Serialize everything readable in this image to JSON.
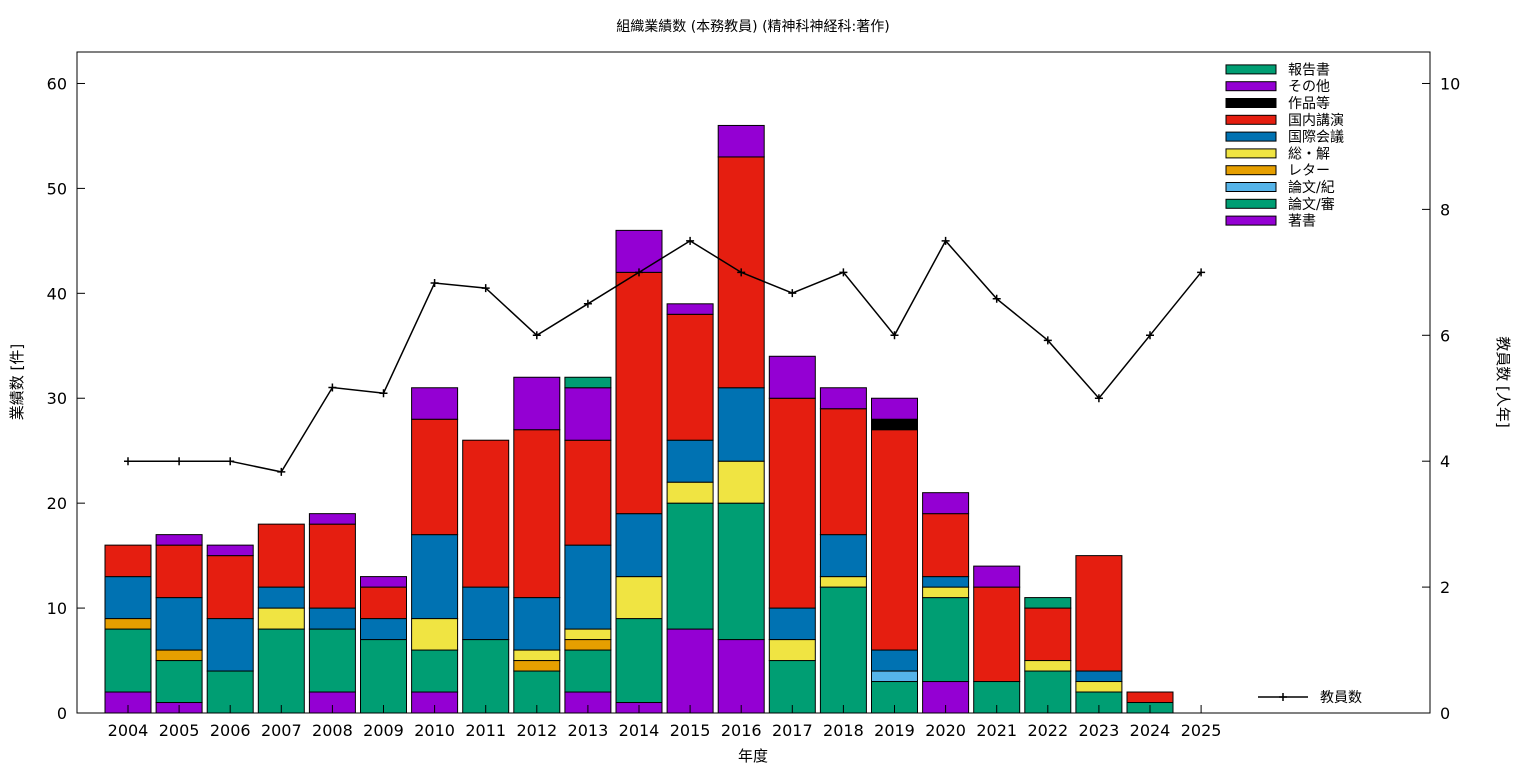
{
  "chart_data": {
    "type": "bar",
    "stacked": true,
    "title": "組織業績数 (本務教員) (精神科神経科:著作)",
    "xlabel": "年度",
    "ylabel": "業績数 [件]",
    "y2label": "教員数 [人年]",
    "ylim": [
      0,
      63
    ],
    "y2lim": [
      0,
      10.5
    ],
    "yticks": [
      "0",
      "10",
      "20",
      "30",
      "40",
      "50",
      "60"
    ],
    "y2ticks": [
      "0",
      "2",
      "4",
      "6",
      "8",
      "10"
    ],
    "legend_position": "top-right",
    "categories": [
      "2004",
      "2005",
      "2006",
      "2007",
      "2008",
      "2009",
      "2010",
      "2011",
      "2012",
      "2013",
      "2014",
      "2015",
      "2016",
      "2017",
      "2018",
      "2019",
      "2020",
      "2021",
      "2022",
      "2023",
      "2024",
      "2025"
    ],
    "series": [
      {
        "name": "著書",
        "color": "#9400d3",
        "values": [
          2,
          1,
          0,
          0,
          2,
          0,
          2,
          0,
          0,
          2,
          1,
          8,
          7,
          0,
          0,
          0,
          3,
          0,
          0,
          0,
          0,
          0
        ]
      },
      {
        "name": "論文/審",
        "color": "#009e73",
        "values": [
          6,
          4,
          4,
          8,
          6,
          7,
          4,
          7,
          4,
          4,
          8,
          12,
          13,
          5,
          12,
          3,
          8,
          3,
          4,
          2,
          1,
          0
        ]
      },
      {
        "name": "論文/紀",
        "color": "#56b4e9",
        "values": [
          0,
          0,
          0,
          0,
          0,
          0,
          0,
          0,
          0,
          0,
          0,
          0,
          0,
          0,
          0,
          1,
          0,
          0,
          0,
          0,
          0,
          0
        ]
      },
      {
        "name": "レター",
        "color": "#e69f00",
        "values": [
          1,
          1,
          0,
          0,
          0,
          0,
          0,
          0,
          1,
          1,
          0,
          0,
          0,
          0,
          0,
          0,
          0,
          0,
          0,
          0,
          0,
          0
        ]
      },
      {
        "name": "総・解",
        "color": "#f0e442",
        "values": [
          0,
          0,
          0,
          2,
          0,
          0,
          3,
          0,
          1,
          1,
          4,
          2,
          4,
          2,
          1,
          0,
          1,
          0,
          1,
          1,
          0,
          0
        ]
      },
      {
        "name": "国際会議",
        "color": "#0072b2",
        "values": [
          4,
          5,
          5,
          2,
          2,
          2,
          8,
          5,
          5,
          8,
          6,
          4,
          7,
          3,
          4,
          2,
          1,
          0,
          0,
          1,
          0,
          0
        ]
      },
      {
        "name": "国内講演",
        "color": "#e51e10",
        "values": [
          3,
          5,
          6,
          6,
          8,
          3,
          11,
          14,
          16,
          10,
          23,
          12,
          22,
          20,
          12,
          21,
          6,
          9,
          5,
          11,
          1,
          0
        ]
      },
      {
        "name": "作品等",
        "color": "#000000",
        "values": [
          0,
          0,
          0,
          0,
          0,
          0,
          0,
          0,
          0,
          0,
          0,
          0,
          0,
          0,
          0,
          1,
          0,
          0,
          0,
          0,
          0,
          0
        ]
      },
      {
        "name": "その他",
        "color": "#9400d3",
        "values": [
          0,
          1,
          1,
          0,
          1,
          1,
          3,
          0,
          5,
          5,
          4,
          1,
          3,
          4,
          2,
          2,
          2,
          2,
          0,
          0,
          0,
          0
        ]
      },
      {
        "name": "報告書",
        "color": "#009e73",
        "values": [
          0,
          0,
          0,
          0,
          0,
          0,
          0,
          0,
          0,
          1,
          0,
          0,
          0,
          0,
          0,
          0,
          0,
          0,
          1,
          0,
          0,
          0
        ]
      }
    ],
    "line_series": {
      "name": "教員数",
      "color": "#000000",
      "axis": "y2",
      "values": [
        4.0,
        4.0,
        4.0,
        3.83,
        5.17,
        5.08,
        6.83,
        6.75,
        6.0,
        6.5,
        7.0,
        7.5,
        7.0,
        6.67,
        7.0,
        6.0,
        7.5,
        6.58,
        5.92,
        5.0,
        6.0,
        7.0
      ]
    }
  }
}
